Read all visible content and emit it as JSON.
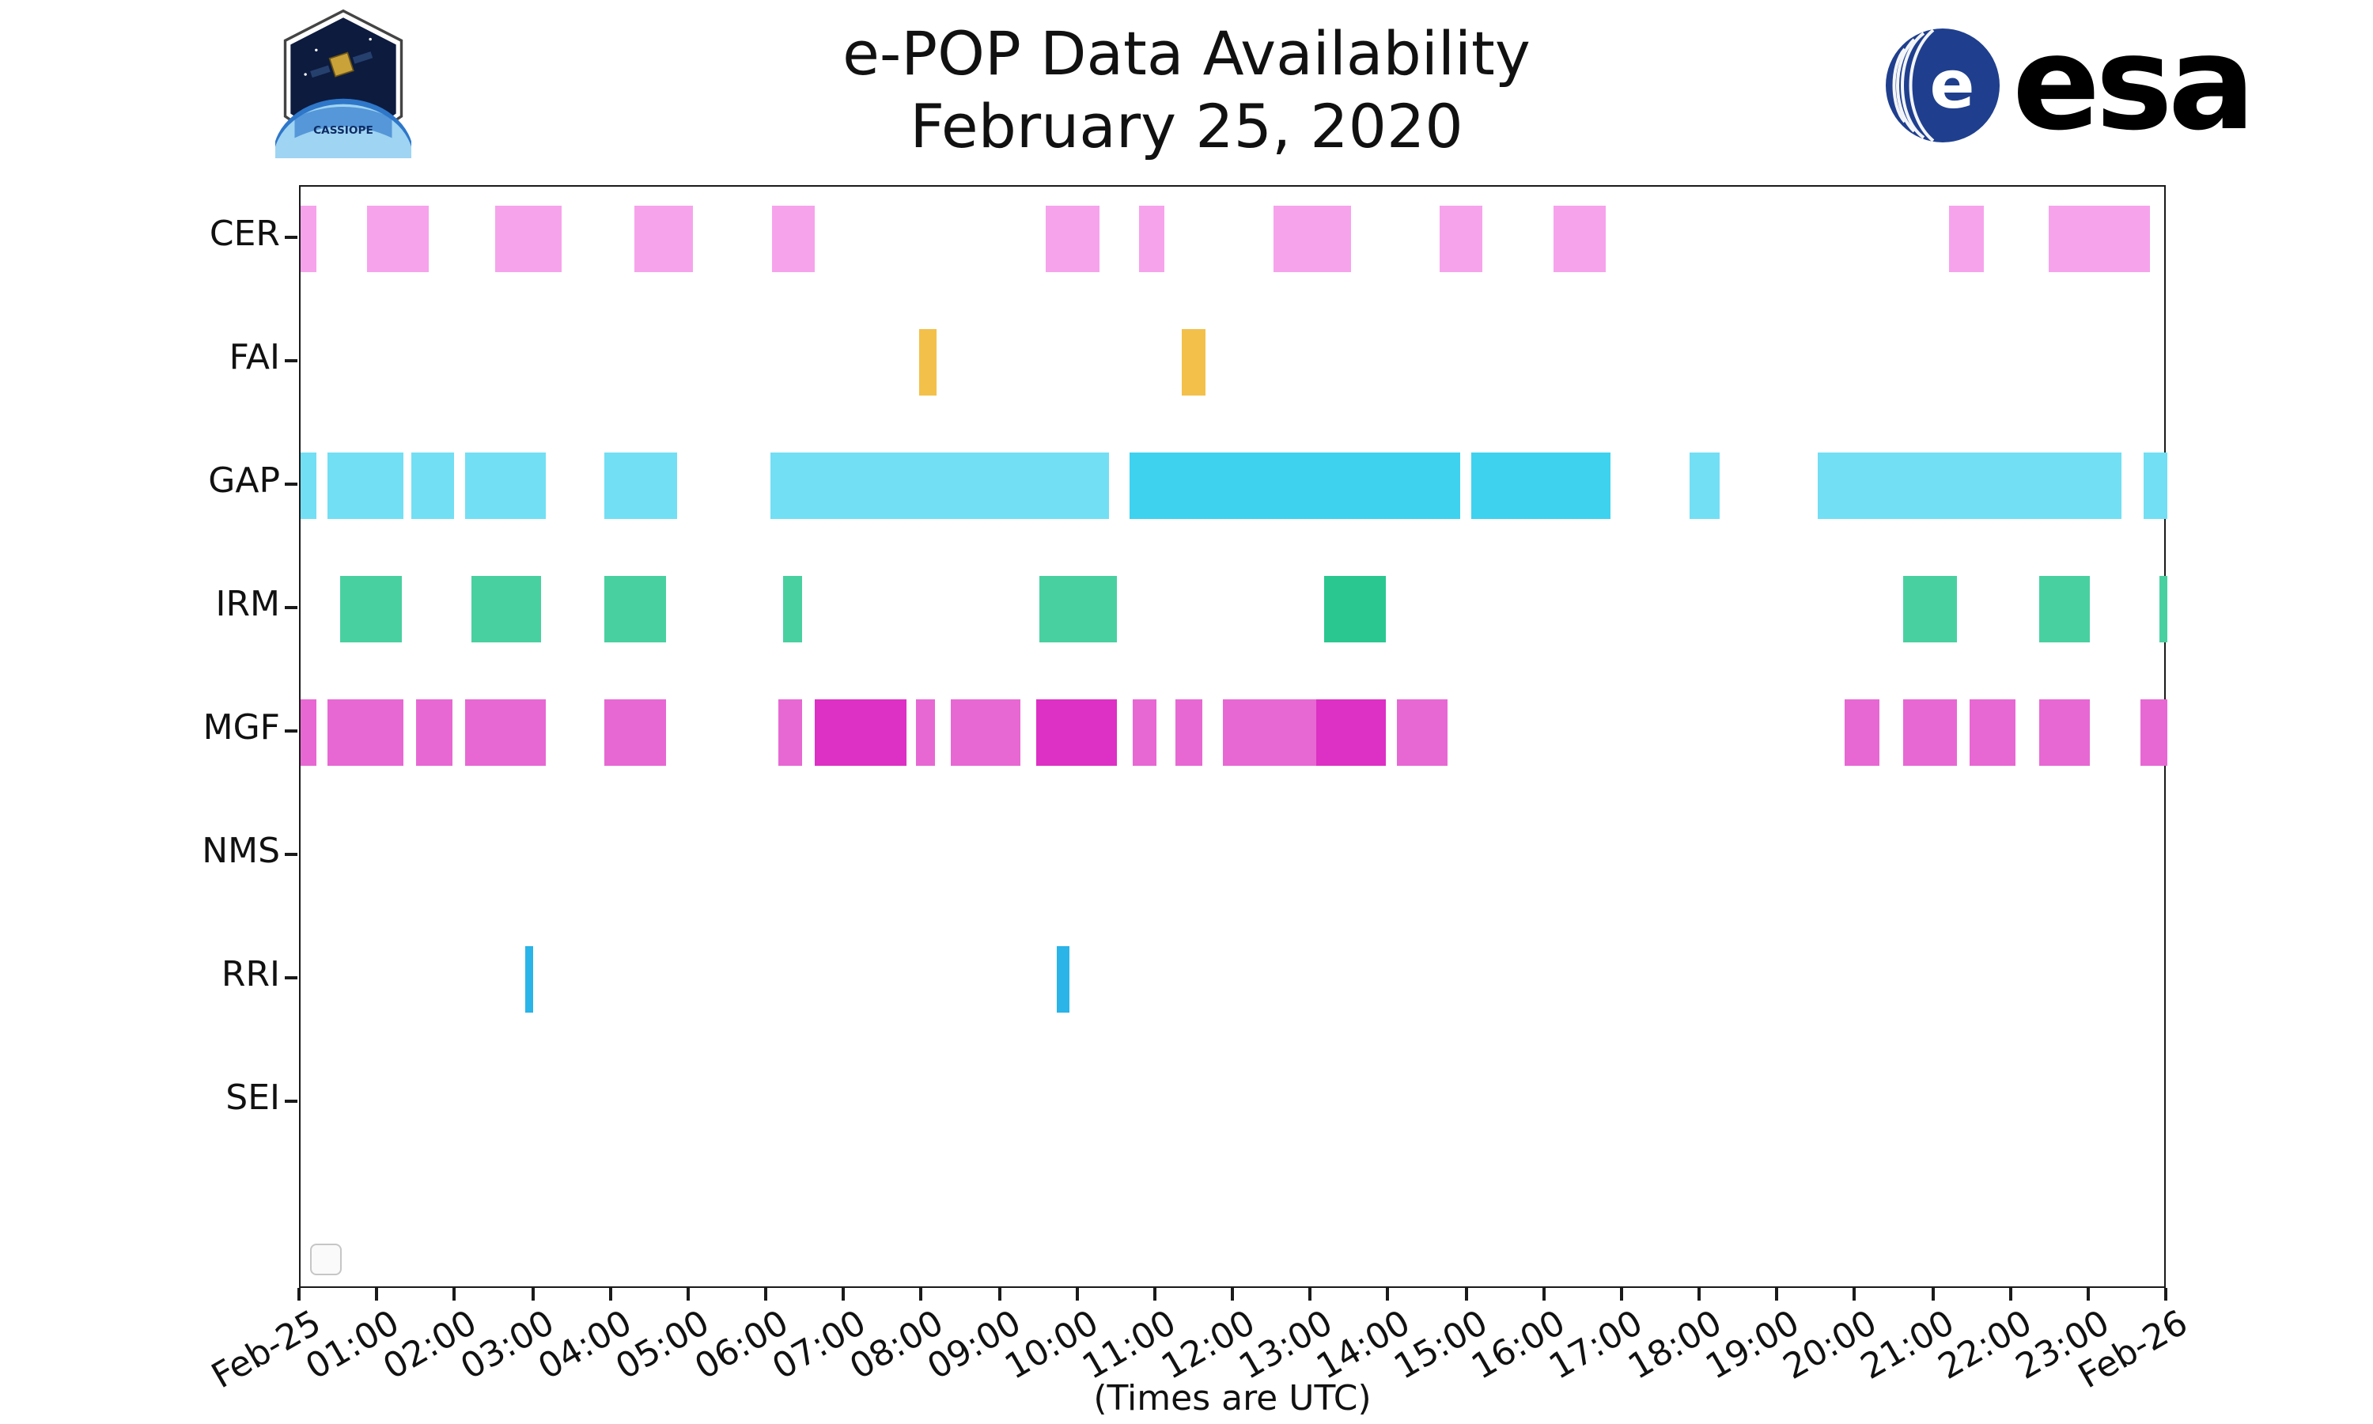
{
  "branding": {
    "esa_text": "esa",
    "esa_blue": "#1f3f8e",
    "patch_text": "CASSIOPE"
  },
  "chart_data": {
    "type": "bar",
    "subtype": "gantt-availability-timeline",
    "title": "e-POP Data Availability",
    "subtitle": "February 25, 2020",
    "xlabel": "(Times are UTC)",
    "xlim_hours": [
      0,
      24
    ],
    "grid": false,
    "legend": {
      "entries": [],
      "position": "lower left",
      "empty_box_visible": true
    },
    "x_ticks": [
      {
        "hour": 0,
        "label": "Feb-25"
      },
      {
        "hour": 1,
        "label": "01:00"
      },
      {
        "hour": 2,
        "label": "02:00"
      },
      {
        "hour": 3,
        "label": "03:00"
      },
      {
        "hour": 4,
        "label": "04:00"
      },
      {
        "hour": 5,
        "label": "05:00"
      },
      {
        "hour": 6,
        "label": "06:00"
      },
      {
        "hour": 7,
        "label": "07:00"
      },
      {
        "hour": 8,
        "label": "08:00"
      },
      {
        "hour": 9,
        "label": "09:00"
      },
      {
        "hour": 10,
        "label": "10:00"
      },
      {
        "hour": 11,
        "label": "11:00"
      },
      {
        "hour": 12,
        "label": "12:00"
      },
      {
        "hour": 13,
        "label": "13:00"
      },
      {
        "hour": 14,
        "label": "14:00"
      },
      {
        "hour": 15,
        "label": "15:00"
      },
      {
        "hour": 16,
        "label": "16:00"
      },
      {
        "hour": 17,
        "label": "17:00"
      },
      {
        "hour": 18,
        "label": "18:00"
      },
      {
        "hour": 19,
        "label": "19:00"
      },
      {
        "hour": 20,
        "label": "20:00"
      },
      {
        "hour": 21,
        "label": "21:00"
      },
      {
        "hour": 22,
        "label": "22:00"
      },
      {
        "hour": 23,
        "label": "23:00"
      },
      {
        "hour": 24,
        "label": "Feb-26"
      }
    ],
    "rows": [
      {
        "label": "CER",
        "color": "#f6a3ec",
        "intervals": [
          {
            "start": 0.0,
            "end": 0.2
          },
          {
            "start": 0.85,
            "end": 1.65
          },
          {
            "start": 2.5,
            "end": 3.35
          },
          {
            "start": 4.3,
            "end": 5.05
          },
          {
            "start": 6.07,
            "end": 6.62
          },
          {
            "start": 9.58,
            "end": 10.28
          },
          {
            "start": 10.77,
            "end": 11.1
          },
          {
            "start": 12.5,
            "end": 13.5
          },
          {
            "start": 14.65,
            "end": 15.2
          },
          {
            "start": 16.1,
            "end": 16.77
          },
          {
            "start": 21.2,
            "end": 21.65
          },
          {
            "start": 22.47,
            "end": 23.78
          }
        ]
      },
      {
        "label": "FAI",
        "color": "#f3c04a",
        "intervals": [
          {
            "start": 7.95,
            "end": 8.18
          },
          {
            "start": 11.33,
            "end": 11.64
          }
        ]
      },
      {
        "label": "GAP",
        "color": "#72dff4",
        "intervals": [
          {
            "start": 0.0,
            "end": 0.2
          },
          {
            "start": 0.35,
            "end": 1.32
          },
          {
            "start": 1.43,
            "end": 1.98
          },
          {
            "start": 2.12,
            "end": 3.16
          },
          {
            "start": 3.9,
            "end": 4.85
          },
          {
            "start": 6.05,
            "end": 10.4
          },
          {
            "start": 10.65,
            "end": 14.9,
            "color": "#3ed2ef"
          },
          {
            "start": 15.05,
            "end": 16.85,
            "color": "#3ed2ef"
          },
          {
            "start": 17.85,
            "end": 18.25
          },
          {
            "start": 19.5,
            "end": 23.4
          },
          {
            "start": 23.7,
            "end": 24.0
          }
        ]
      },
      {
        "label": "IRM",
        "color": "#49d0a1",
        "intervals": [
          {
            "start": 0.5,
            "end": 1.3
          },
          {
            "start": 2.2,
            "end": 3.1
          },
          {
            "start": 3.9,
            "end": 4.7
          },
          {
            "start": 6.2,
            "end": 6.45
          },
          {
            "start": 9.5,
            "end": 10.5
          },
          {
            "start": 13.15,
            "end": 13.95,
            "color": "#2bc791"
          },
          {
            "start": 20.6,
            "end": 21.3
          },
          {
            "start": 22.35,
            "end": 23.0
          },
          {
            "start": 23.9,
            "end": 24.0
          }
        ]
      },
      {
        "label": "MGF",
        "color": "#e768d3",
        "intervals": [
          {
            "start": 0.0,
            "end": 0.2
          },
          {
            "start": 0.35,
            "end": 1.32
          },
          {
            "start": 1.48,
            "end": 1.95
          },
          {
            "start": 2.12,
            "end": 3.16
          },
          {
            "start": 3.9,
            "end": 4.7
          },
          {
            "start": 6.15,
            "end": 6.45
          },
          {
            "start": 6.62,
            "end": 7.8,
            "color": "#dd30c4"
          },
          {
            "start": 7.92,
            "end": 8.15
          },
          {
            "start": 8.35,
            "end": 9.25
          },
          {
            "start": 9.45,
            "end": 10.5,
            "color": "#dd30c4"
          },
          {
            "start": 10.7,
            "end": 11.0
          },
          {
            "start": 11.25,
            "end": 11.6
          },
          {
            "start": 11.85,
            "end": 13.05
          },
          {
            "start": 13.05,
            "end": 13.95,
            "color": "#dd30c4"
          },
          {
            "start": 14.1,
            "end": 14.75
          },
          {
            "start": 19.85,
            "end": 20.3
          },
          {
            "start": 20.6,
            "end": 21.3
          },
          {
            "start": 21.45,
            "end": 22.05
          },
          {
            "start": 22.35,
            "end": 23.0
          },
          {
            "start": 23.65,
            "end": 24.0
          }
        ]
      },
      {
        "label": "NMS",
        "color": "#bbbbbb",
        "intervals": []
      },
      {
        "label": "RRI",
        "color": "#2ab4e8",
        "intervals": [
          {
            "start": 2.88,
            "end": 3.0
          },
          {
            "start": 9.72,
            "end": 9.88
          }
        ]
      },
      {
        "label": "SEI",
        "color": "#bbbbbb",
        "intervals": []
      }
    ]
  }
}
